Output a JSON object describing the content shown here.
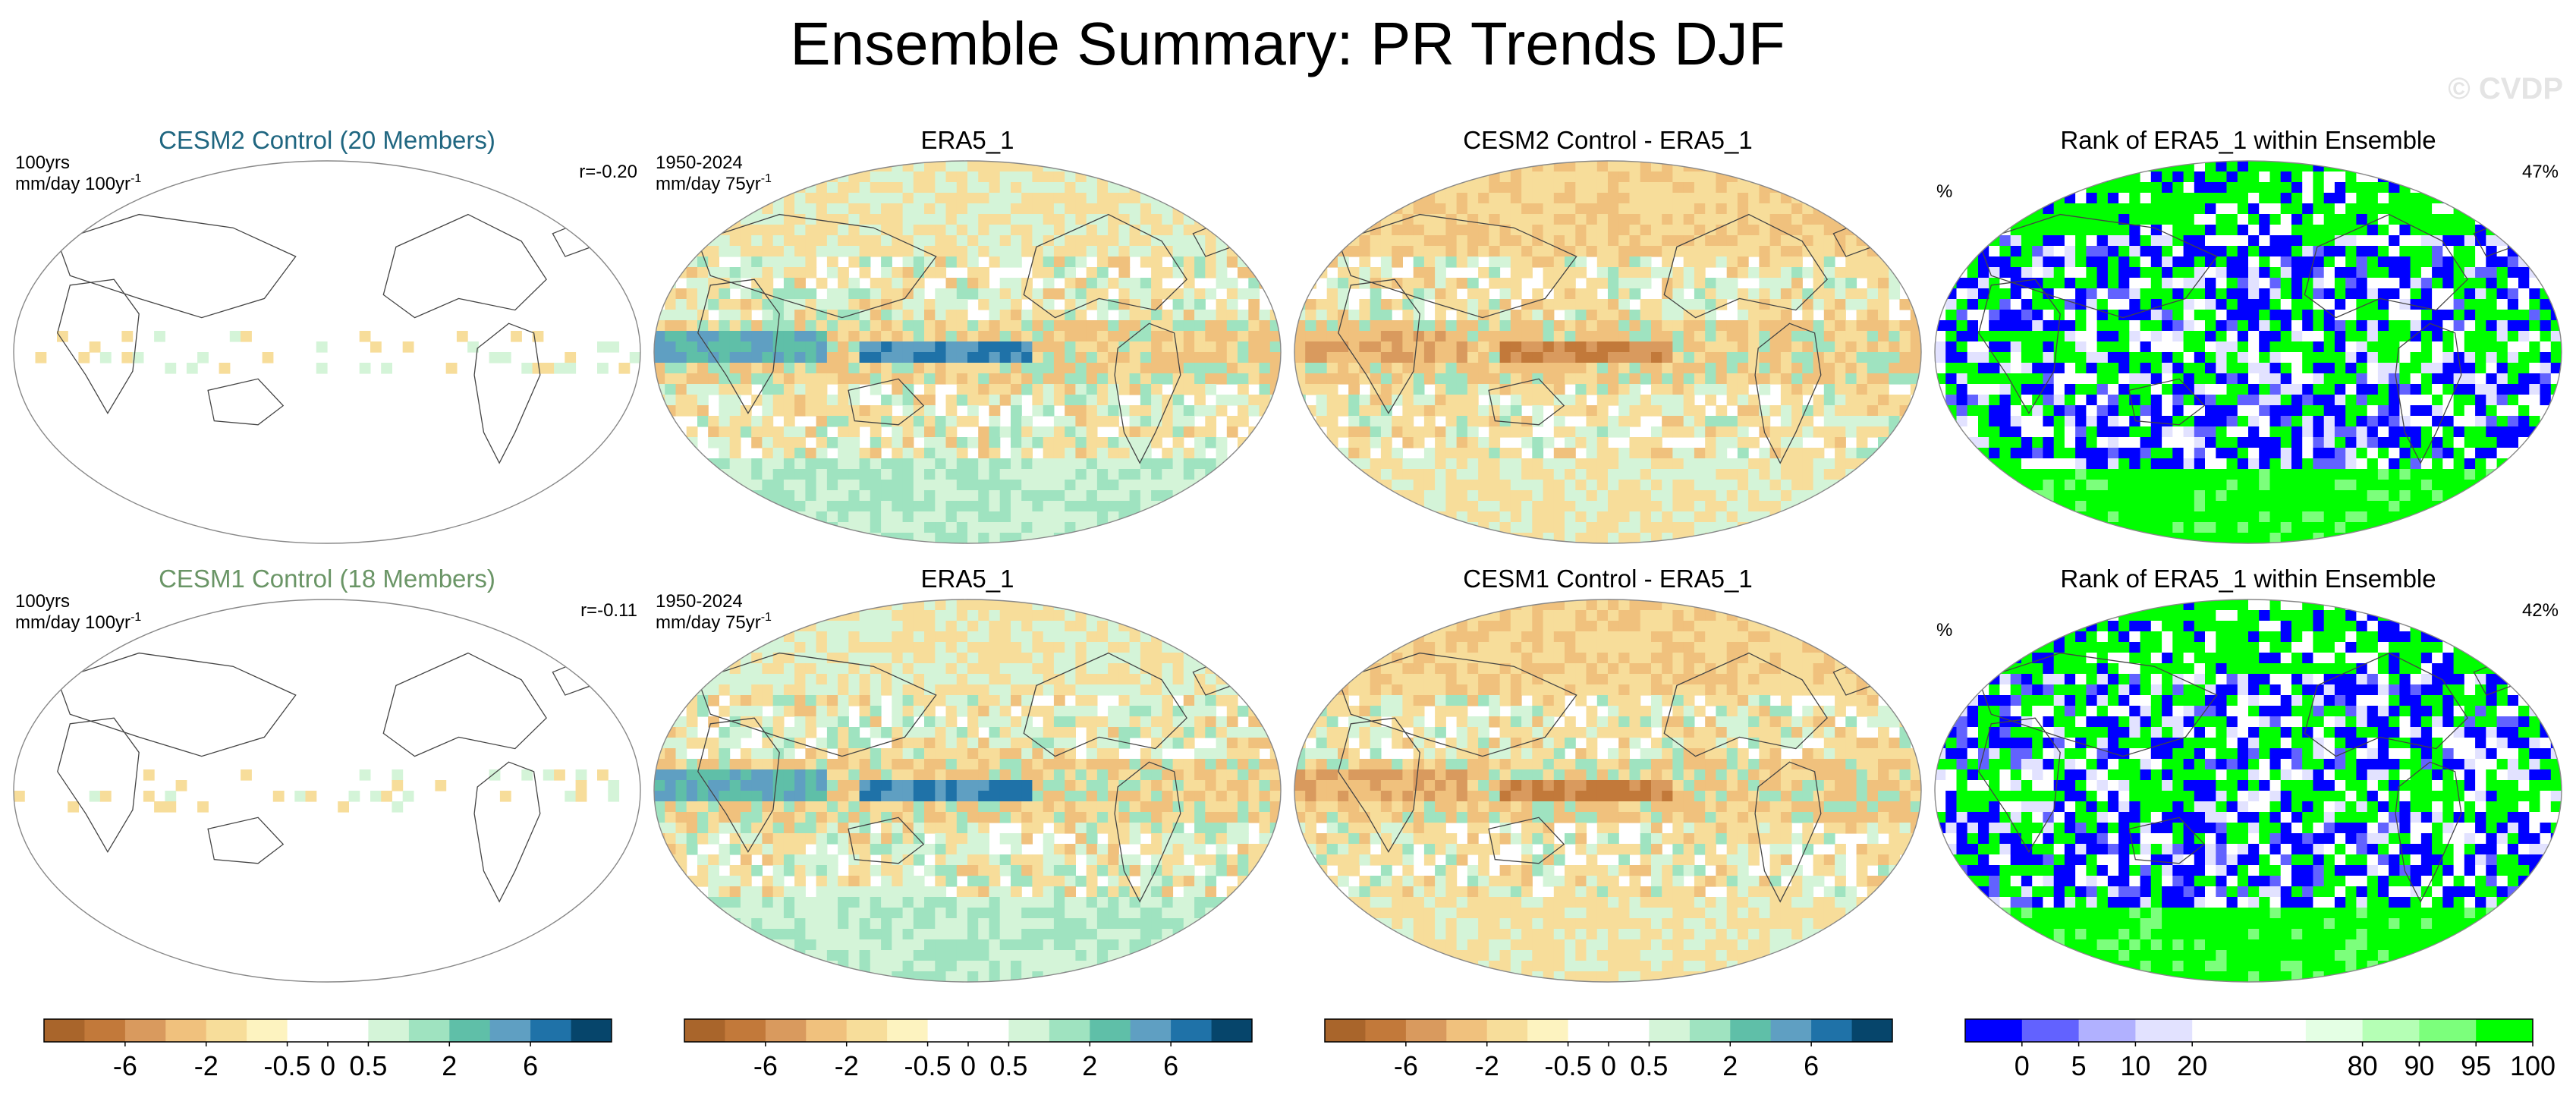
{
  "title": "Ensemble Summary: PR Trends DJF",
  "watermark": "© CVDP",
  "colors": {
    "trend_scale": [
      "#a9652b",
      "#c2793a",
      "#d99a5e",
      "#f0c17d",
      "#f7dd9a",
      "#fdf3c0",
      "#ffffff",
      "#ffffff",
      "#d4f4d8",
      "#9fe3c0",
      "#5fbfa8",
      "#5f9fc2",
      "#1f72a8",
      "#06456b"
    ],
    "rank_scale": [
      "#0000ff",
      "#6262ff",
      "#b1b1ff",
      "#e2e2ff",
      "#ffffff",
      "#ffffff",
      "#e4ffe4",
      "#b5ffb5",
      "#7cff7c",
      "#00ff00"
    ],
    "cesm2_title": "#1f6680",
    "cesm1_title": "#6a9566",
    "coast": "#444444"
  },
  "rows": [
    {
      "panels": [
        {
          "title": "CESM2 Control (20 Members)",
          "color_key": "cesm2_title",
          "left_label": "100yrs",
          "units_base": "mm/day 100yr",
          "units_sup": "-1",
          "right_label": "r=-0.20",
          "kind": "ensemble"
        },
        {
          "title": "ERA5_1",
          "left_label": "1950-2024",
          "units_base": "mm/day 75yr",
          "units_sup": "-1",
          "right_label": "",
          "kind": "obs"
        },
        {
          "title": "CESM2 Control - ERA5_1",
          "left_label": "",
          "units_base": "",
          "units_sup": "",
          "right_label": "",
          "kind": "diff"
        },
        {
          "title": "Rank of ERA5_1 within Ensemble",
          "left_label": "%",
          "units_base": "",
          "units_sup": "",
          "right_label": "47%",
          "kind": "rank"
        }
      ]
    },
    {
      "panels": [
        {
          "title": "CESM1 Control (18 Members)",
          "color_key": "cesm1_title",
          "left_label": "100yrs",
          "units_base": "mm/day 100yr",
          "units_sup": "-1",
          "right_label": "r=-0.11",
          "kind": "ensemble"
        },
        {
          "title": "ERA5_1",
          "left_label": "1950-2024",
          "units_base": "mm/day 75yr",
          "units_sup": "-1",
          "right_label": "",
          "kind": "obs"
        },
        {
          "title": "CESM1 Control - ERA5_1",
          "left_label": "",
          "units_base": "",
          "units_sup": "",
          "right_label": "",
          "kind": "diff"
        },
        {
          "title": "Rank of ERA5_1 within Ensemble",
          "left_label": "%",
          "units_base": "",
          "units_sup": "",
          "right_label": "42%",
          "kind": "rank"
        }
      ]
    }
  ],
  "colorbars": [
    {
      "scale": "trend_scale",
      "tick_labels": [
        "-6",
        "-2",
        "-0.5",
        "0",
        "0.5",
        "2",
        "6"
      ],
      "tick_boundaries": [
        2,
        4,
        6,
        7,
        8,
        10,
        12
      ]
    },
    {
      "scale": "trend_scale",
      "tick_labels": [
        "-6",
        "-2",
        "-0.5",
        "0",
        "0.5",
        "2",
        "6"
      ],
      "tick_boundaries": [
        2,
        4,
        6,
        7,
        8,
        10,
        12
      ]
    },
    {
      "scale": "trend_scale",
      "tick_labels": [
        "-6",
        "-2",
        "-0.5",
        "0",
        "0.5",
        "2",
        "6"
      ],
      "tick_boundaries": [
        2,
        4,
        6,
        7,
        8,
        10,
        12
      ]
    },
    {
      "scale": "rank_scale",
      "tick_labels": [
        "0",
        "5",
        "10",
        "20",
        "80",
        "90",
        "95",
        "100"
      ],
      "tick_boundaries": [
        1,
        2,
        3,
        4,
        7,
        8,
        9,
        10
      ]
    }
  ],
  "chart_data": {
    "type": "heatmap",
    "title": "Ensemble Summary: PR Trends DJF",
    "variable": "PR trends DJF",
    "trend_levels": [
      -6,
      -2,
      -0.5,
      0,
      0.5,
      2,
      6
    ],
    "rank_levels": [
      0,
      5,
      10,
      20,
      80,
      90,
      95,
      100
    ],
    "panels": [
      "CESM2 Control (20 Members)",
      "ERA5_1",
      "CESM2 Control - ERA5_1",
      "Rank of ERA5_1 within Ensemble",
      "CESM1 Control (18 Members)",
      "ERA5_1",
      "CESM1 Control - ERA5_1",
      "Rank of ERA5_1 within Ensemble"
    ],
    "pattern_correlation": {
      "CESM2 Control": -0.2,
      "CESM1 Control": -0.11
    },
    "rank_percent": {
      "CESM2 Control": 47,
      "CESM1 Control": 42
    }
  }
}
